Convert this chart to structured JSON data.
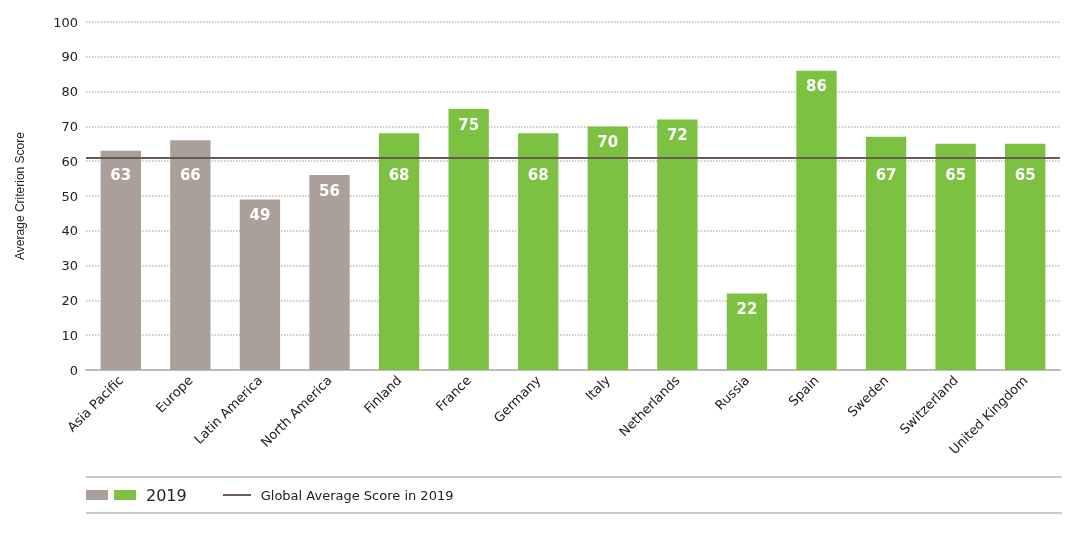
{
  "chart_data": {
    "type": "bar",
    "ylabel": "Average Criterion Score",
    "categories": [
      "Asia Pacific",
      "Europe",
      "Latin America",
      "North America",
      "Finland",
      "France",
      "Germany",
      "Italy",
      "Netherlands",
      "Russia",
      "Spain",
      "Sweden",
      "Switzerland",
      "United Kingdom"
    ],
    "series": [
      {
        "name": "2019",
        "colors": [
          "#ab9f9a",
          "#ab9f9a",
          "#ab9f9a",
          "#ab9f9a",
          "#7dc142",
          "#7dc142",
          "#7dc142",
          "#7dc142",
          "#7dc142",
          "#7dc142",
          "#7dc142",
          "#7dc142",
          "#7dc142",
          "#7dc142"
        ],
        "values": [
          63,
          66,
          49,
          56,
          68,
          75,
          68,
          70,
          72,
          22,
          86,
          67,
          65,
          65
        ]
      }
    ],
    "ylim": [
      0,
      100
    ],
    "yticks": [
      0,
      10,
      20,
      30,
      40,
      50,
      60,
      70,
      80,
      90,
      100
    ],
    "grid": "y",
    "legend": "bottom",
    "data_labels": true,
    "ref_lines": [
      {
        "axis": "y",
        "value": 61,
        "label": "Global Average Score in 2019",
        "color": "#6b5a55"
      }
    ]
  }
}
